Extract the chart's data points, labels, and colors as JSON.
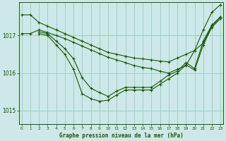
{
  "title": "Graphe pression niveau de la mer (hPa)",
  "bg_color": "#cce8e8",
  "line_color": "#1a5500",
  "grid_color": "#99ccbb",
  "xlim": [
    -0.3,
    23.3
  ],
  "ylim": [
    1014.65,
    1017.88
  ],
  "yticks": [
    1015,
    1016,
    1017
  ],
  "xticks": [
    0,
    1,
    2,
    3,
    4,
    5,
    6,
    7,
    8,
    9,
    10,
    11,
    12,
    13,
    14,
    15,
    16,
    17,
    18,
    19,
    20,
    21,
    22,
    23
  ],
  "series": [
    {
      "x": [
        0,
        1,
        2,
        3,
        4,
        5,
        6,
        7,
        8,
        9,
        10,
        11,
        12,
        13,
        14,
        15,
        16,
        17,
        18,
        19,
        20,
        21,
        22,
        23
      ],
      "y": [
        1017.55,
        1017.55,
        1017.35,
        1017.25,
        1017.15,
        1017.05,
        1016.95,
        1016.85,
        1016.75,
        1016.65,
        1016.55,
        1016.5,
        1016.45,
        1016.4,
        1016.38,
        1016.35,
        1016.32,
        1016.3,
        1016.4,
        1016.5,
        1016.6,
        1017.15,
        1017.62,
        1017.82
      ]
    },
    {
      "x": [
        0,
        1,
        2,
        3,
        4,
        5,
        6,
        7,
        8,
        9,
        10,
        11,
        12,
        13,
        14,
        15,
        16,
        17,
        18,
        19,
        20,
        21,
        22,
        23
      ],
      "y": [
        1017.05,
        1017.05,
        1017.15,
        1017.08,
        1017.0,
        1016.92,
        1016.82,
        1016.72,
        1016.62,
        1016.52,
        1016.42,
        1016.35,
        1016.28,
        1016.2,
        1016.15,
        1016.12,
        1016.05,
        1016.0,
        1016.1,
        1016.2,
        1016.6,
        1016.8,
        1017.25,
        1017.5
      ]
    },
    {
      "x": [
        2,
        3,
        4,
        5,
        6,
        7,
        8,
        9,
        10,
        11,
        12,
        13,
        14,
        15,
        16,
        17,
        18,
        19,
        20,
        21,
        22,
        23
      ],
      "y": [
        1017.1,
        1017.05,
        1016.85,
        1016.65,
        1016.38,
        1015.88,
        1015.6,
        1015.48,
        1015.38,
        1015.52,
        1015.62,
        1015.62,
        1015.62,
        1015.62,
        1015.78,
        1015.95,
        1016.05,
        1016.28,
        1016.12,
        1016.85,
        1017.28,
        1017.5
      ]
    },
    {
      "x": [
        2,
        3,
        4,
        5,
        6,
        7,
        8,
        9,
        10,
        11,
        12,
        13,
        14,
        15,
        16,
        17,
        18,
        19,
        20,
        21,
        22,
        23
      ],
      "y": [
        1017.05,
        1017.0,
        1016.75,
        1016.5,
        1016.1,
        1015.45,
        1015.32,
        1015.25,
        1015.28,
        1015.42,
        1015.55,
        1015.55,
        1015.55,
        1015.55,
        1015.7,
        1015.85,
        1016.0,
        1016.22,
        1016.08,
        1016.75,
        1017.22,
        1017.45
      ]
    }
  ]
}
